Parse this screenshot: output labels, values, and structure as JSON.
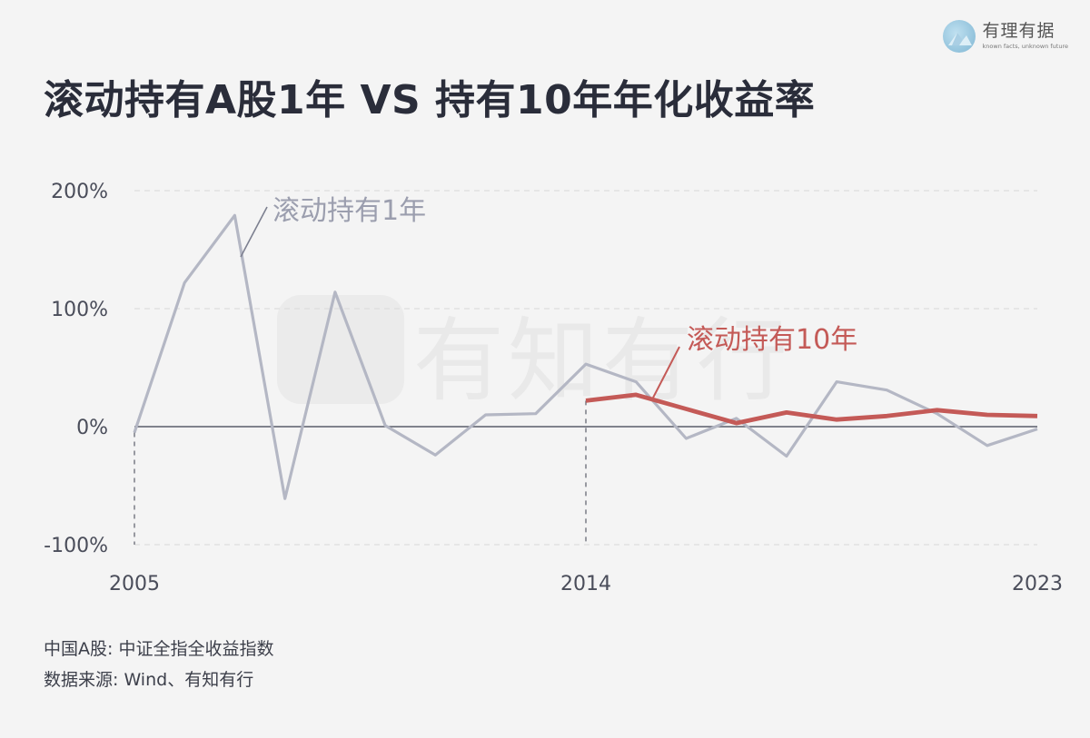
{
  "brand": {
    "name": "有理有据",
    "tagline": "known facts, unknown future"
  },
  "title": "滚动持有A股1年 VS 持有10年年化收益率",
  "watermark": "有知有行",
  "footnotes": {
    "line1": "中国A股: 中证全指全收益指数",
    "line2": "数据来源: Wind、有知有行"
  },
  "colors": {
    "one_year": "#b4b7c4",
    "ten_year": "#c45a57",
    "axis_text": "#4a4d5a",
    "grid": "#dddddd",
    "zero_line": "#5a5d6a",
    "title": "#2a2d3a"
  },
  "chart_data": {
    "type": "line",
    "title": "滚动持有A股1年 VS 持有10年年化收益率",
    "x_tick_labels": [
      "2005",
      "2014",
      "2023"
    ],
    "y_tick_labels": [
      "200%",
      "100%",
      "0%",
      "-100%"
    ],
    "y_ticks": [
      200,
      100,
      0,
      -100
    ],
    "xlim": [
      2005,
      2023
    ],
    "ylim": [
      -100,
      200
    ],
    "grid": true,
    "series": [
      {
        "name": "滚动持有1年",
        "x": [
          2005,
          2006,
          2007,
          2008,
          2009,
          2010,
          2011,
          2012,
          2013,
          2014,
          2015,
          2016,
          2017,
          2018,
          2019,
          2020,
          2021,
          2022,
          2023
        ],
        "values": [
          -5,
          122,
          179,
          -61,
          114,
          1,
          -24,
          10,
          11,
          53,
          38,
          -10,
          7,
          -25,
          38,
          31,
          11,
          -16,
          -2
        ]
      },
      {
        "name": "滚动持有10年",
        "x": [
          2014,
          2015,
          2016,
          2017,
          2018,
          2019,
          2020,
          2021,
          2022,
          2023
        ],
        "values": [
          22,
          27,
          15,
          3,
          12,
          6,
          9,
          14,
          10,
          9
        ]
      }
    ],
    "reference_years": [
      2005,
      2014
    ]
  }
}
